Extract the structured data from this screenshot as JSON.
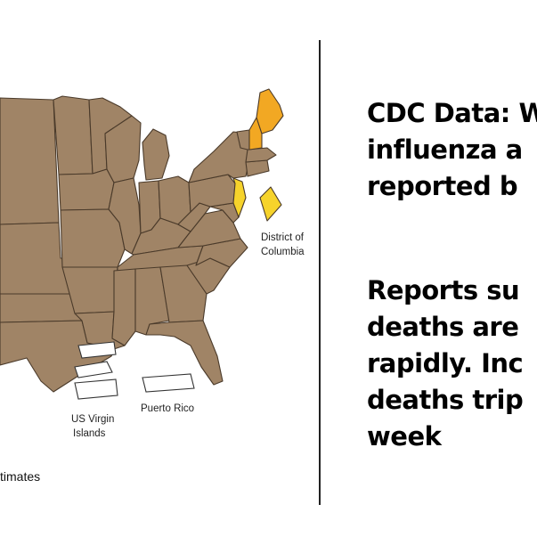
{
  "map": {
    "colors": {
      "default_state": "#a08466",
      "highlight_orange": "#f2a823",
      "highlight_yellow": "#f6d32b",
      "border": "#4a3a2a"
    },
    "labels": {
      "dc": [
        "District of",
        "Columbia"
      ],
      "usvi": [
        "US Virgin",
        "Islands"
      ],
      "pr": "Puerto Rico"
    },
    "legend_fragment": "timates"
  },
  "headline": {
    "lines_top": [
      "CDC Data: W",
      "influenza a",
      "reported b"
    ],
    "lines_bottom": [
      "Reports su",
      "deaths are",
      "rapidly. Inc",
      "deaths trip",
      "week"
    ]
  }
}
